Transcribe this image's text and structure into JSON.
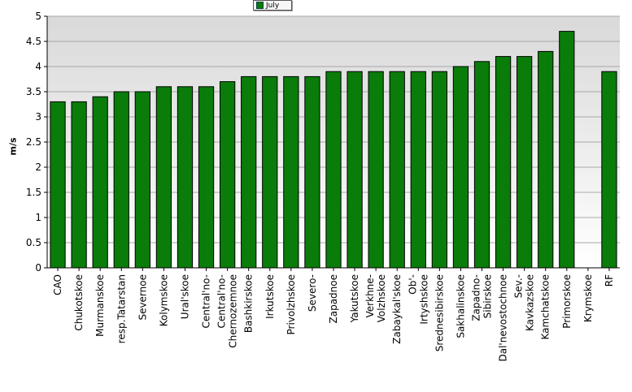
{
  "chart_data": {
    "type": "bar",
    "ylabel": "m/s",
    "ylim": [
      0,
      5
    ],
    "yticks": [
      "0",
      "0.5",
      "1",
      "1.5",
      "2",
      "2.5",
      "3",
      "3.5",
      "4",
      "4.5",
      "5"
    ],
    "grid": true,
    "legend_position": "top-center",
    "categories": [
      "CAO",
      "Chukotskoe",
      "Murmanskoe",
      "resp.Tatarstan",
      "Severnoe",
      "Kolymskoe",
      "Ural'skoe",
      "Central'no-",
      "Central'no-Chernozemnoe",
      "Bashkirskoe",
      "Irkutskoe",
      "Privolzhskoe",
      "Severo-",
      "Zapadnoe",
      "Yakutskoe",
      "Verkhne-Volzhskoe",
      "Zabaykal'skoe",
      "Ob'-Irtyshskoe",
      "Srednesibirskoe",
      "Sakhalinskoe",
      "Zapadno-Sibirskoe",
      "Dal'nevostochnoe",
      "Sev.-Kavkazskoe",
      "Kamchatskoe",
      "Primorskoe",
      "Krymskoe",
      "RF"
    ],
    "tick_labels": [
      [
        "CAO"
      ],
      [
        "Chukotskoe"
      ],
      [
        "Murmanskoe"
      ],
      [
        "resp.Tatarstan"
      ],
      [
        "Severnoe"
      ],
      [
        "Kolymskoe"
      ],
      [
        "Ural'skoe"
      ],
      [
        "Central'no-"
      ],
      [
        "Central'no-",
        "Chernozemnoe"
      ],
      [
        "Bashkirskoe"
      ],
      [
        "Irkutskoe"
      ],
      [
        "Privolzhskoe"
      ],
      [
        "Severo-"
      ],
      [
        "Zapadnoe"
      ],
      [
        "Yakutskoe"
      ],
      [
        "Verkhne-",
        "Volzhskoe"
      ],
      [
        "Zabaykal'skoe"
      ],
      [
        "Ob'-",
        "Irtyshskoe"
      ],
      [
        "Srednesibirskoe"
      ],
      [
        "Sakhalinskoe"
      ],
      [
        "Zapadno-",
        "Sibirskoe"
      ],
      [
        "Dal'nevostochnoe"
      ],
      [
        "Sev.-",
        "Kavkazskoe"
      ],
      [
        "Kamchatskoe"
      ],
      [
        "Primorskoe"
      ],
      [
        "Krymskoe"
      ],
      [
        "RF"
      ]
    ],
    "series": [
      {
        "name": "July",
        "color": "#0a7c0a",
        "values": [
          3.3,
          3.3,
          3.4,
          3.5,
          3.5,
          3.6,
          3.6,
          3.6,
          3.7,
          3.8,
          3.8,
          3.8,
          3.8,
          3.9,
          3.9,
          3.9,
          3.9,
          3.9,
          3.9,
          4.0,
          4.1,
          4.2,
          4.2,
          4.3,
          4.7,
          null,
          3.9
        ]
      }
    ]
  },
  "legend": {
    "label": "July"
  }
}
